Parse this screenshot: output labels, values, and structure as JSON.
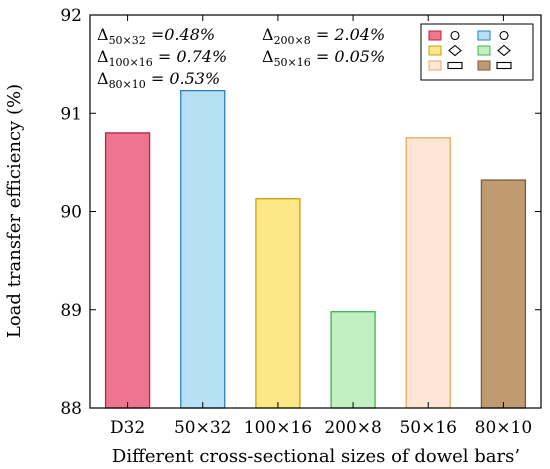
{
  "chart_data": {
    "type": "bar",
    "title": "",
    "xlabel": "Different cross-sectional sizes of dowel bars’",
    "ylabel": "Load transfer efficiency (%)",
    "ylim": [
      88,
      92
    ],
    "yticks": [
      "88",
      "89",
      "90",
      "91",
      "92"
    ],
    "grid": false,
    "categories": [
      "D32",
      "50×32",
      "100×16",
      "200×8",
      "50×16",
      "80×10"
    ],
    "values": [
      90.8,
      91.23,
      90.13,
      88.98,
      90.75,
      90.32
    ],
    "colors": [
      {
        "fill": "#ee7590",
        "stroke": "#b8233f"
      },
      {
        "fill": "#b8e0f4",
        "stroke": "#2a7fbf"
      },
      {
        "fill": "#fde888",
        "stroke": "#c8a010"
      },
      {
        "fill": "#c3f0c3",
        "stroke": "#3cb44b"
      },
      {
        "fill": "#fde6d6",
        "stroke": "#e8a860"
      },
      {
        "fill": "#c09b72",
        "stroke": "#7a5b37"
      }
    ],
    "legend": {
      "position": "top-right",
      "symbols": [
        "circle-icon",
        "circle-icon",
        "diamond-icon",
        "diamond-icon",
        "rectangle-icon",
        "rectangle-icon"
      ]
    },
    "annotations": [
      {
        "prefix": "Δ",
        "sub": "50×32",
        "eq": " =",
        "value": "0.48%"
      },
      {
        "prefix": "Δ",
        "sub": "200×8",
        "eq": " = ",
        "value": "2.04%"
      },
      {
        "prefix": "Δ",
        "sub": "100×16",
        "eq": " = ",
        "value": "0.74%"
      },
      {
        "prefix": "Δ",
        "sub": "50×16",
        "eq": " = ",
        "value": "0.05%"
      },
      {
        "prefix": "Δ",
        "sub": "80×10",
        "eq": " = ",
        "value": "0.53%"
      }
    ]
  }
}
